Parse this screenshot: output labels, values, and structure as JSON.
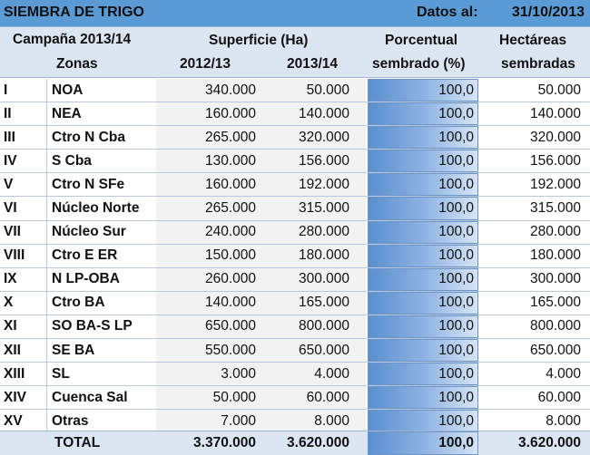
{
  "title_bar": {
    "title": "SIEMBRA DE TRIGO",
    "datos_label": "Datos al:",
    "date": "31/10/2013"
  },
  "header": {
    "campaign": "Campaña 2013/14",
    "superficie": "Superficie (Ha)",
    "porcentual": "Porcentual",
    "hectareas": "Hectáreas",
    "zonas": "Zonas",
    "year1": "2012/13",
    "year2": "2013/14",
    "sembrado_pct": "sembrado (%)",
    "sembradas": "sembradas"
  },
  "rows": [
    {
      "num": "I",
      "zona": "NOA",
      "s12": "340.000",
      "s13": "50.000",
      "pct": "100,0",
      "ha": "50.000"
    },
    {
      "num": "II",
      "zona": "NEA",
      "s12": "160.000",
      "s13": "140.000",
      "pct": "100,0",
      "ha": "140.000"
    },
    {
      "num": "III",
      "zona": "Ctro N Cba",
      "s12": "265.000",
      "s13": "320.000",
      "pct": "100,0",
      "ha": "320.000"
    },
    {
      "num": "IV",
      "zona": "S Cba",
      "s12": "130.000",
      "s13": "156.000",
      "pct": "100,0",
      "ha": "156.000"
    },
    {
      "num": "V",
      "zona": "Ctro N SFe",
      "s12": "160.000",
      "s13": "192.000",
      "pct": "100,0",
      "ha": "192.000"
    },
    {
      "num": "VI",
      "zona": "Núcleo Norte",
      "s12": "265.000",
      "s13": "315.000",
      "pct": "100,0",
      "ha": "315.000"
    },
    {
      "num": "VII",
      "zona": "Núcleo Sur",
      "s12": "240.000",
      "s13": "280.000",
      "pct": "100,0",
      "ha": "280.000"
    },
    {
      "num": "VIII",
      "zona": "Ctro E ER",
      "s12": "150.000",
      "s13": "180.000",
      "pct": "100,0",
      "ha": "180.000"
    },
    {
      "num": "IX",
      "zona": "N LP-OBA",
      "s12": "260.000",
      "s13": "300.000",
      "pct": "100,0",
      "ha": "300.000"
    },
    {
      "num": "X",
      "zona": "Ctro BA",
      "s12": "140.000",
      "s13": "165.000",
      "pct": "100,0",
      "ha": "165.000"
    },
    {
      "num": "XI",
      "zona": "SO BA-S LP",
      "s12": "650.000",
      "s13": "800.000",
      "pct": "100,0",
      "ha": "800.000"
    },
    {
      "num": "XII",
      "zona": "SE BA",
      "s12": "550.000",
      "s13": "650.000",
      "pct": "100,0",
      "ha": "650.000"
    },
    {
      "num": "XIII",
      "zona": "SL",
      "s12": "3.000",
      "s13": "4.000",
      "pct": "100,0",
      "ha": "4.000"
    },
    {
      "num": "XIV",
      "zona": "Cuenca Sal",
      "s12": "50.000",
      "s13": "60.000",
      "pct": "100,0",
      "ha": "60.000"
    },
    {
      "num": "XV",
      "zona": "Otras",
      "s12": "7.000",
      "s13": "8.000",
      "pct": "100,0",
      "ha": "8.000"
    }
  ],
  "total": {
    "label": "TOTAL",
    "s12": "3.370.000",
    "s13": "3.620.000",
    "pct": "100,0",
    "ha": "3.620.000"
  },
  "colors": {
    "title_bg": "#5b9bd5",
    "header_bg": "#dce6f2",
    "pct_bar": "#5a8fd0"
  }
}
